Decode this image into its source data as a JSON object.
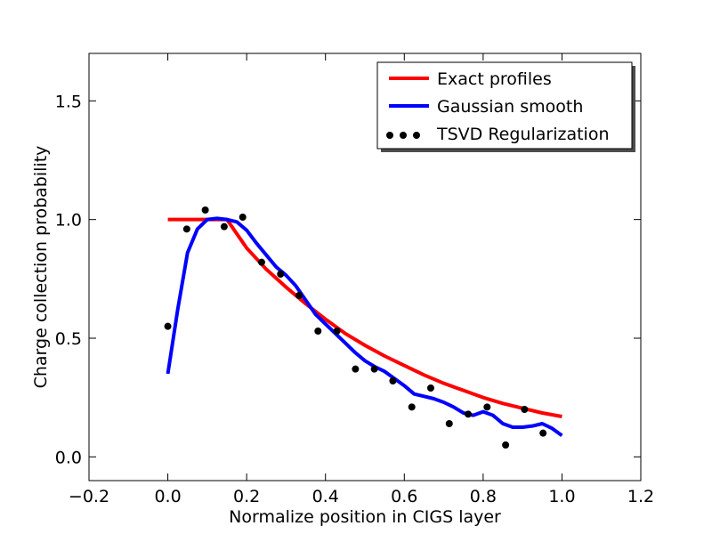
{
  "chart_data": {
    "type": "line",
    "title": "",
    "xlabel": "Normalize position in CIGS layer",
    "ylabel": "Charge collection probability",
    "xlim": [
      -0.2,
      1.2
    ],
    "ylim": [
      -0.1,
      1.7
    ],
    "xticks": [
      -0.2,
      0.0,
      0.2,
      0.4,
      0.6,
      0.8,
      1.0,
      1.2
    ],
    "xtick_labels": [
      "−0.2",
      "0.0",
      "0.2",
      "0.4",
      "0.6",
      "0.8",
      "1.0",
      "1.2"
    ],
    "yticks": [
      0.0,
      0.5,
      1.0,
      1.5
    ],
    "ytick_labels": [
      "0.0",
      "0.5",
      "1.0",
      "1.5"
    ],
    "grid": false,
    "legend_position": "top-right",
    "series": [
      {
        "name": "Exact profiles",
        "kind": "line",
        "color": "#ff0000",
        "x": [
          0.0,
          0.05,
          0.1,
          0.15,
          0.2,
          0.25,
          0.3,
          0.35,
          0.4,
          0.45,
          0.5,
          0.55,
          0.6,
          0.65,
          0.7,
          0.75,
          0.8,
          0.85,
          0.9,
          0.95,
          1.0
        ],
        "y": [
          1.0,
          1.0,
          1.0,
          1.0,
          0.88,
          0.79,
          0.715,
          0.645,
          0.58,
          0.52,
          0.47,
          0.425,
          0.385,
          0.345,
          0.31,
          0.28,
          0.25,
          0.225,
          0.205,
          0.185,
          0.17
        ]
      },
      {
        "name": "Gaussian smooth",
        "kind": "line",
        "color": "#0000ff",
        "x": [
          0.0,
          0.025,
          0.05,
          0.075,
          0.1,
          0.125,
          0.15,
          0.175,
          0.2,
          0.225,
          0.25,
          0.275,
          0.3,
          0.325,
          0.35,
          0.375,
          0.4,
          0.425,
          0.45,
          0.475,
          0.5,
          0.525,
          0.55,
          0.575,
          0.6,
          0.625,
          0.65,
          0.675,
          0.7,
          0.725,
          0.75,
          0.775,
          0.8,
          0.825,
          0.85,
          0.875,
          0.9,
          0.925,
          0.95,
          0.975,
          1.0
        ],
        "y": [
          0.35,
          0.62,
          0.86,
          0.96,
          1.0,
          1.005,
          1.0,
          0.99,
          0.955,
          0.9,
          0.85,
          0.8,
          0.765,
          0.72,
          0.66,
          0.6,
          0.56,
          0.52,
          0.48,
          0.44,
          0.405,
          0.38,
          0.36,
          0.33,
          0.3,
          0.265,
          0.255,
          0.245,
          0.23,
          0.21,
          0.185,
          0.175,
          0.19,
          0.175,
          0.14,
          0.125,
          0.125,
          0.13,
          0.14,
          0.12,
          0.09
        ]
      },
      {
        "name": "TSVD Regularization",
        "kind": "scatter",
        "color": "#000000",
        "x": [
          0.0,
          0.048,
          0.095,
          0.143,
          0.19,
          0.238,
          0.286,
          0.333,
          0.381,
          0.429,
          0.476,
          0.524,
          0.571,
          0.619,
          0.667,
          0.714,
          0.762,
          0.81,
          0.857,
          0.905,
          0.952
        ],
        "y": [
          0.55,
          0.96,
          1.04,
          0.97,
          1.01,
          0.82,
          0.77,
          0.68,
          0.53,
          0.53,
          0.37,
          0.37,
          0.32,
          0.21,
          0.29,
          0.14,
          0.18,
          0.21,
          0.05,
          0.2,
          0.1
        ]
      }
    ]
  }
}
